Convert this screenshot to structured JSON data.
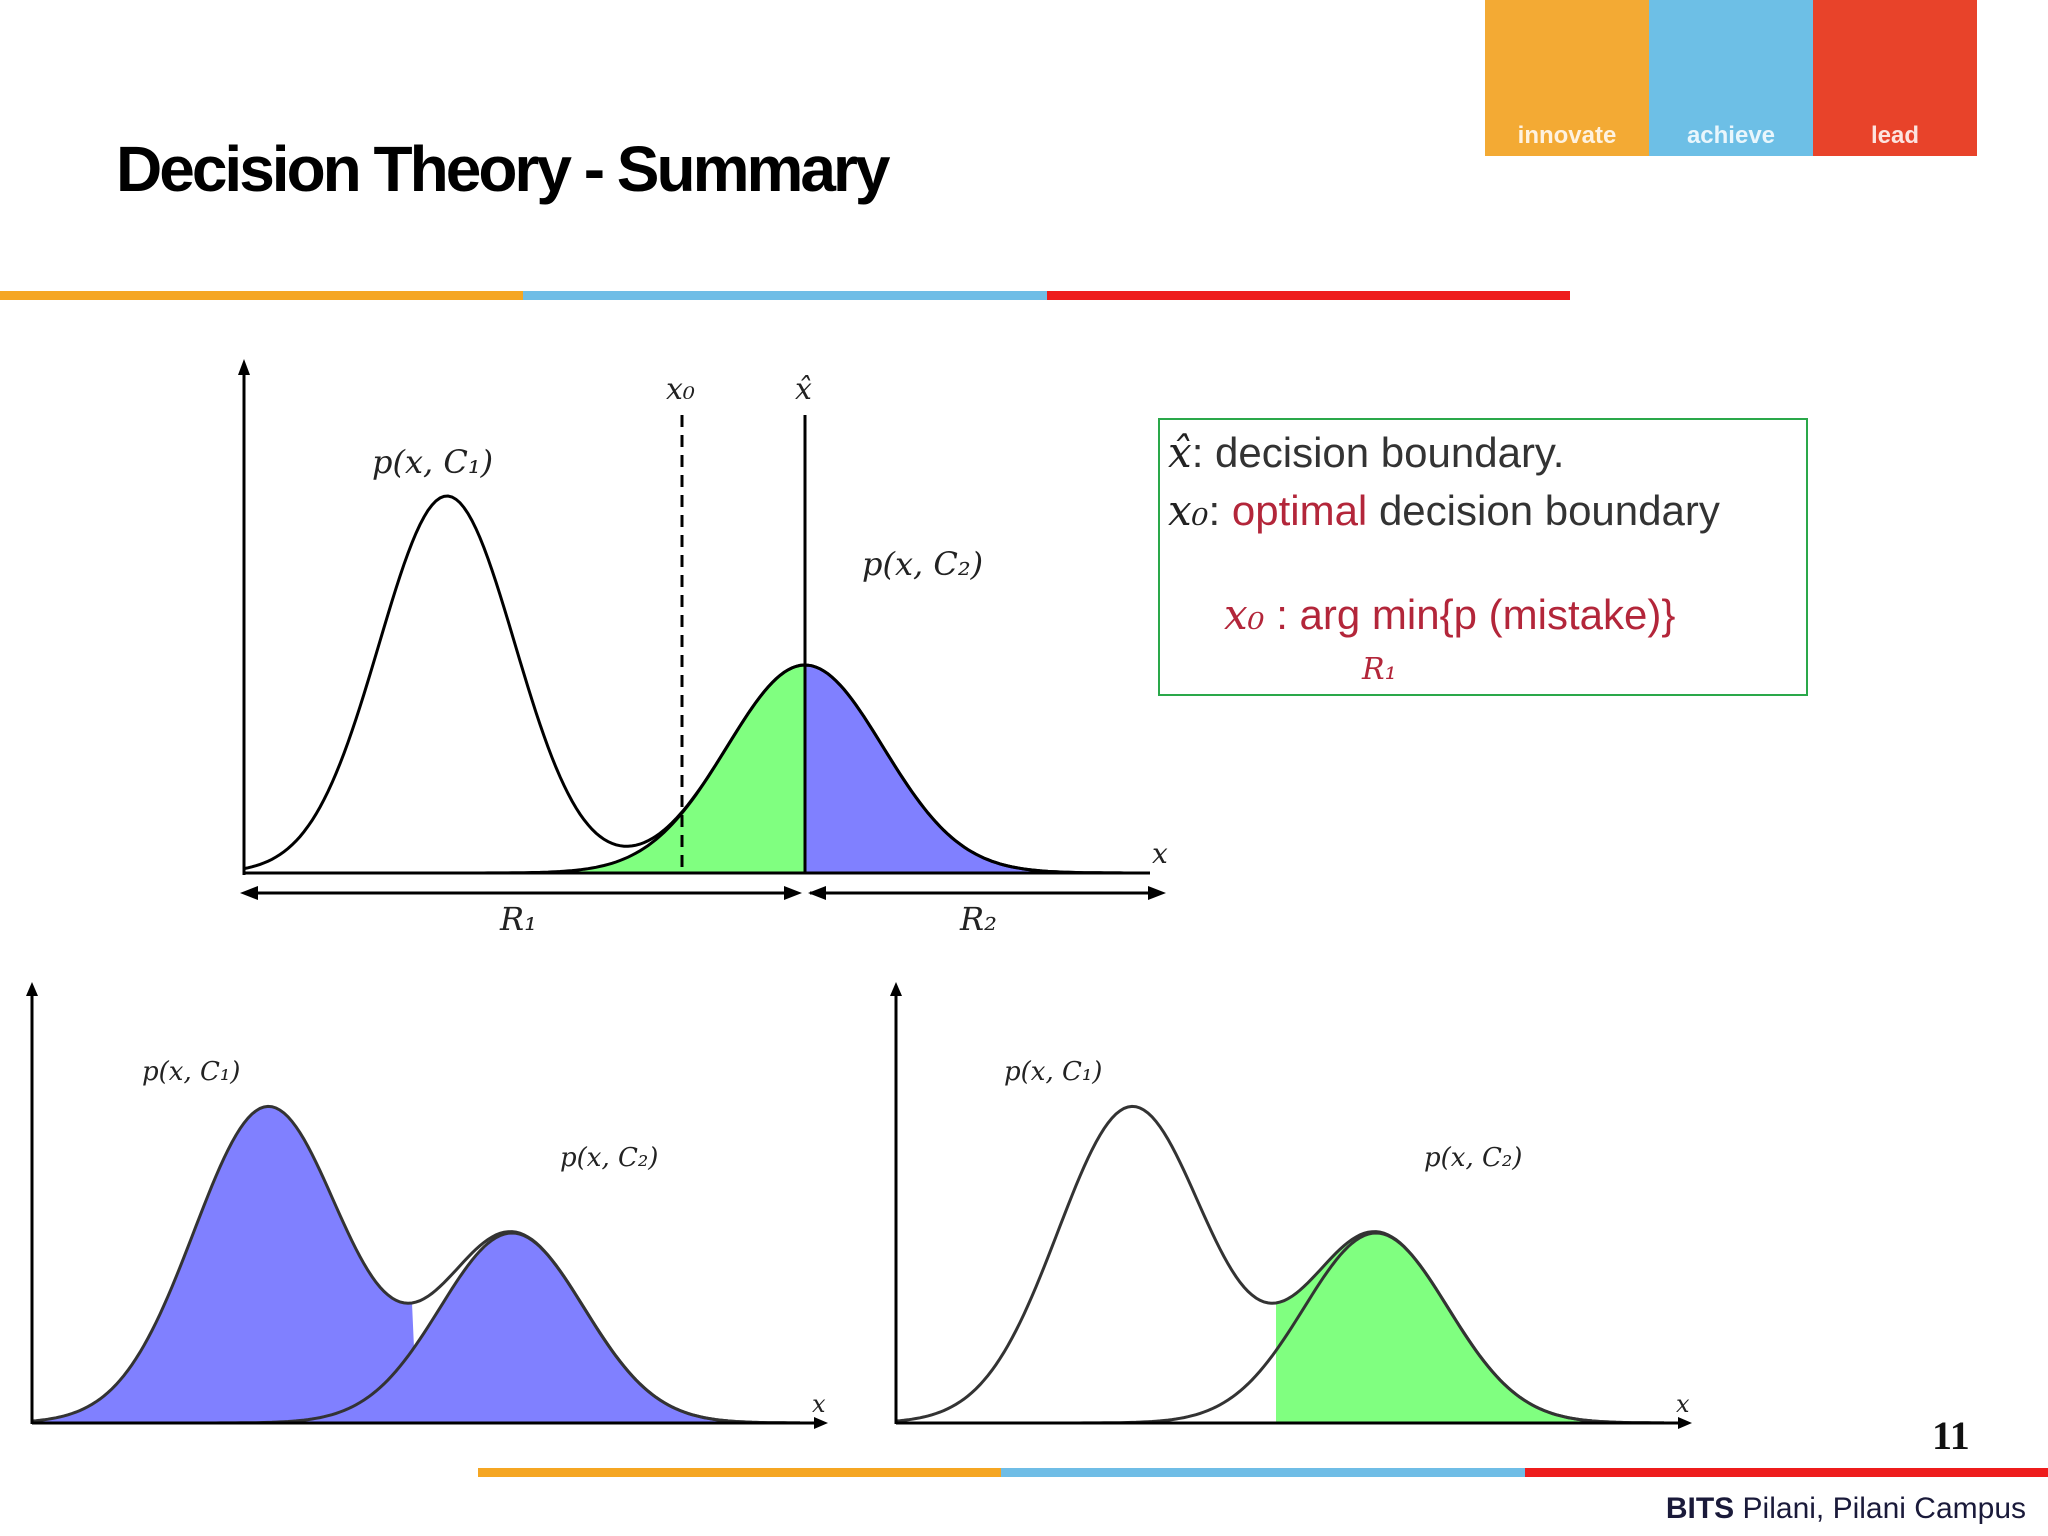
{
  "header": {
    "title": "Decision Theory - Summary",
    "logo_words": [
      "innovate",
      "achieve",
      "lead"
    ]
  },
  "legend": {
    "xhat_symbol": "x̂",
    "xhat_text": ": decision boundary.",
    "x0_symbol": "x₀",
    "x0_colon": ":",
    "x0_optimal": "optimal",
    "x0_rest": "decision boundary",
    "argmin_prefix": "x₀",
    "argmin_text": ": arg min{p (mistake)}",
    "argmin_sub": "R₁"
  },
  "figures": {
    "top": {
      "labels": {
        "x0": "x₀",
        "xhat": "x̂",
        "p1": "p(x, C₁)",
        "p2": "p(x, C₂)",
        "xaxis": "x",
        "r1": "R₁",
        "r2": "R₂"
      }
    },
    "bottom_left": {
      "labels": {
        "p1": "p(x, C₁)",
        "p2": "p(x, C₂)",
        "xaxis": "x"
      }
    },
    "bottom_right": {
      "labels": {
        "p1": "p(x, C₁)",
        "p2": "p(x, C₂)",
        "xaxis": "x"
      }
    }
  },
  "colors": {
    "red_region": "#ff8080",
    "green_region": "#80ff80",
    "blue_region": "#8080ff",
    "logo_orange": "#f3aa34",
    "logo_blue": "#6dbfe6",
    "logo_red": "#e8432a",
    "legend_border": "#2aa84a",
    "legend_red": "#b3263a"
  },
  "footer": {
    "page_number": "11",
    "brand": "BITS",
    "campus": " Pilani, Pilani Campus"
  }
}
